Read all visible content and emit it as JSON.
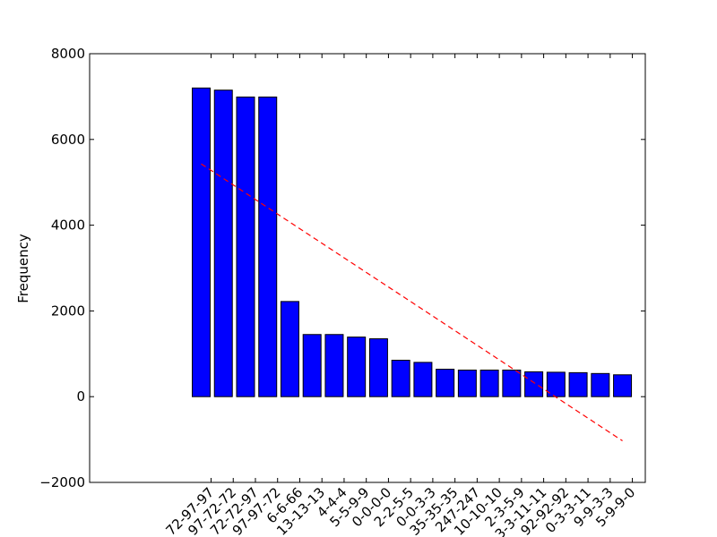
{
  "chart_data": {
    "type": "bar",
    "title": "",
    "xlabel": "",
    "ylabel": "Frequency",
    "ylim": [
      -2000,
      8000
    ],
    "yticks": [
      -2000,
      0,
      2000,
      4000,
      6000,
      8000
    ],
    "ytick_labels": [
      "−2000",
      "0",
      "2000",
      "4000",
      "6000",
      "8000"
    ],
    "grid": false,
    "categories": [
      "72-97-97",
      "97-72-72",
      "72-72-97",
      "97-97-72",
      "6-6-66",
      "13-13-13",
      "4-4-4",
      "5-5-9-9",
      "0-0-0-0",
      "2-2-5-5",
      "0-0-3-3",
      "35-35-35",
      "247-247",
      "10-10-10",
      "2-3-5-9",
      "3-3-11-11",
      "92-92-92",
      "0-3-3-11",
      "9-9-3-3",
      "5-9-9-0"
    ],
    "values": [
      7200,
      7150,
      6990,
      6990,
      2220,
      1450,
      1450,
      1390,
      1350,
      850,
      800,
      640,
      620,
      620,
      620,
      580,
      570,
      560,
      540,
      510
    ],
    "bar_color": "#0000ff",
    "trendline": {
      "style": "dashed",
      "color": "#ff0000",
      "start": 5430,
      "end": -1030
    }
  }
}
